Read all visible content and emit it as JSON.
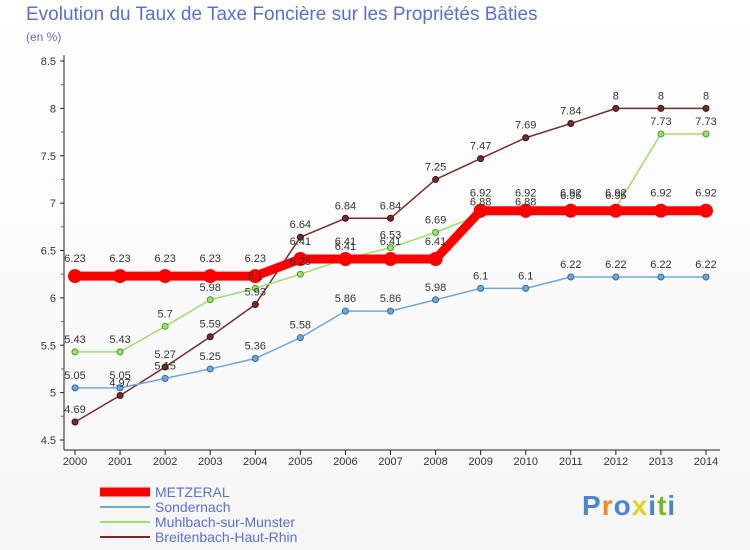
{
  "colors": {
    "metzeral": "#ff0000",
    "sondernach": "#6fa8d8",
    "muhlbach": "#9be06a",
    "breitenbach": "#7a2a2a",
    "title": "#5a6fd6",
    "axis": "#222222"
  },
  "chart_data": {
    "type": "line",
    "title": "Evolution du Taux de Taxe Foncière sur les Propriétés Bâties",
    "subtitle": "(en %)",
    "xlabel": "",
    "ylabel": "",
    "ylim": [
      4.5,
      8.5
    ],
    "grid": false,
    "legend_position": "bottom-left",
    "x": [
      "2000",
      "2001",
      "2002",
      "2003",
      "2004",
      "2005",
      "2006",
      "2007",
      "2008",
      "2009",
      "2010",
      "2011",
      "2012",
      "2013",
      "2014"
    ],
    "yticks": [
      "4.5",
      "5",
      "5.5",
      "6",
      "6.5",
      "7",
      "7.5",
      "8",
      "8.5"
    ],
    "series": [
      {
        "key": "metzeral",
        "name": "METZERAL",
        "values": [
          6.23,
          6.23,
          6.23,
          6.23,
          6.23,
          6.41,
          6.41,
          6.41,
          6.41,
          6.92,
          6.92,
          6.92,
          6.92,
          6.92,
          6.92
        ],
        "labels": [
          "6.23",
          "6.23",
          "6.23",
          "6.23",
          "6.23",
          "6.41",
          "6.41",
          "6.41",
          "6.41",
          "6.92",
          "6.92",
          "6.92",
          "6.92",
          "6.92",
          "6.92"
        ]
      },
      {
        "key": "sondernach",
        "name": "Sondernach",
        "values": [
          5.05,
          5.05,
          5.15,
          5.25,
          5.36,
          5.58,
          5.86,
          5.86,
          5.98,
          6.1,
          6.1,
          6.22,
          6.22,
          6.22,
          6.22
        ],
        "labels": [
          "5.05",
          "5.05",
          "5.15",
          "5.25",
          "5.36",
          "5.58",
          "5.86",
          "5.86",
          "5.98",
          "6.1",
          "6.1",
          "6.22",
          "6.22",
          "6.22",
          "6.22"
        ]
      },
      {
        "key": "muhlbach",
        "name": "Muhlbach-sur-Munster",
        "values": [
          5.43,
          5.43,
          5.7,
          5.98,
          6.1,
          6.25,
          6.41,
          6.53,
          6.69,
          6.88,
          6.88,
          6.95,
          6.95,
          7.73,
          7.73
        ],
        "labels": [
          "5.43",
          "5.43",
          "5.7",
          "5.98",
          "6.1",
          "6.25",
          "6.41",
          "6.53",
          "6.69",
          "6.88",
          "6.88",
          "6.95",
          "6.95",
          "7.73",
          "7.73"
        ]
      },
      {
        "key": "breitenbach",
        "name": "Breitenbach-Haut-Rhin",
        "values": [
          4.69,
          4.97,
          5.27,
          5.59,
          5.93,
          6.64,
          6.84,
          6.84,
          7.25,
          7.47,
          7.69,
          7.84,
          8,
          8,
          8
        ],
        "labels": [
          "4.69",
          "4.97",
          "5.27",
          "5.59",
          "5.93",
          "6.64",
          "6.84",
          "6.84",
          "7.25",
          "7.47",
          "7.69",
          "7.84",
          "8",
          "8",
          "8"
        ]
      }
    ]
  },
  "branding": {
    "logo_letters": [
      "P",
      "r",
      "o",
      "x",
      "i",
      "t",
      "i"
    ],
    "logo_colors": [
      "#4a86d0",
      "#f08a1a",
      "#4a86d0",
      "#e8d01a",
      "#4a86d0",
      "#7ab82a",
      "#4a86d0"
    ]
  }
}
